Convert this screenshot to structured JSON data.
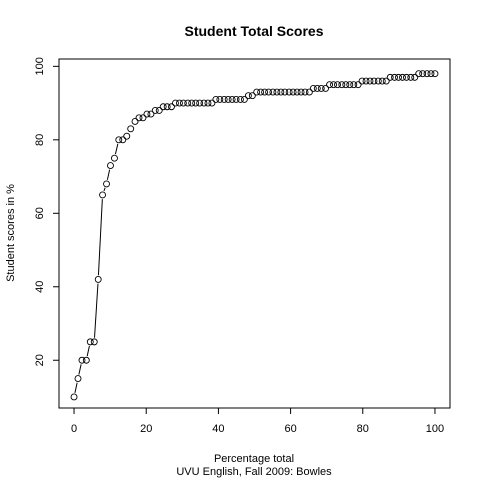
{
  "chart_data": {
    "type": "scatter",
    "title": "Student Total Scores",
    "xlabel": "Percentage total",
    "ylabel": "Student scores in %",
    "subtitle": "UVU English, Fall 2009: Bowles",
    "xlim": [
      0,
      100
    ],
    "ylim": [
      7,
      102
    ],
    "xticks": [
      0,
      20,
      40,
      60,
      80,
      100
    ],
    "yticks": [
      20,
      40,
      60,
      80,
      100
    ],
    "series": [
      {
        "x": [
          0,
          1.1,
          2.2,
          3.4,
          4.5,
          5.6,
          6.7,
          7.9,
          9.0,
          10.1,
          11.2,
          12.4,
          13.5,
          14.6,
          15.7,
          16.9,
          18.0,
          19.1,
          20.2,
          21.3,
          22.5,
          23.6,
          24.7,
          25.8,
          27.0,
          28.1,
          29.2,
          30.3,
          31.5,
          32.6,
          33.7,
          34.8,
          36.0,
          37.1,
          38.2,
          39.3,
          40.4,
          41.6,
          42.7,
          43.8,
          44.9,
          46.1,
          47.2,
          48.3,
          49.4,
          50.6,
          51.7,
          52.8,
          53.9,
          55.1,
          56.2,
          57.3,
          58.4,
          59.6,
          60.7,
          61.8,
          62.9,
          64.0,
          65.2,
          66.3,
          67.4,
          68.5,
          69.7,
          70.8,
          71.9,
          73.0,
          74.2,
          75.3,
          76.4,
          77.5,
          78.7,
          79.8,
          80.9,
          82.0,
          83.1,
          84.3,
          85.4,
          86.5,
          87.6,
          88.8,
          89.9,
          91.0,
          92.1,
          93.3,
          94.4,
          95.5,
          96.6,
          97.8,
          98.9,
          100
        ],
        "y": [
          10,
          15,
          20,
          20,
          25,
          25,
          42,
          65,
          68,
          73,
          75,
          80,
          80,
          81,
          83,
          85,
          86,
          86,
          87,
          87,
          88,
          88,
          89,
          89,
          89,
          90,
          90,
          90,
          90,
          90,
          90,
          90,
          90,
          90,
          90,
          91,
          91,
          91,
          91,
          91,
          91,
          91,
          91,
          92,
          92,
          93,
          93,
          93,
          93,
          93,
          93,
          93,
          93,
          93,
          93,
          93,
          93,
          93,
          93,
          94,
          94,
          94,
          94,
          95,
          95,
          95,
          95,
          95,
          95,
          95,
          95,
          96,
          96,
          96,
          96,
          96,
          96,
          96,
          97,
          97,
          97,
          97,
          97,
          97,
          97,
          98,
          98,
          98,
          98,
          98
        ]
      }
    ]
  }
}
